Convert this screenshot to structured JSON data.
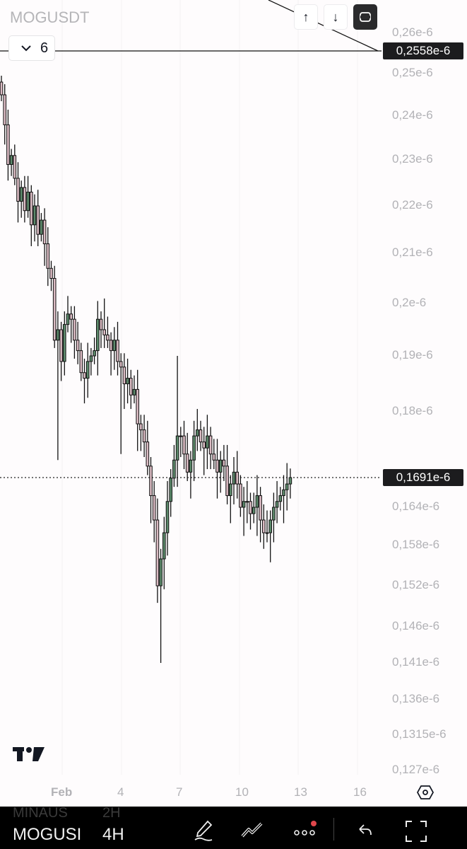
{
  "header": {
    "symbol": "MOGUSDT",
    "collapse_count": "6",
    "collapse_icon": "chevron-down-icon",
    "buttons": [
      "arrow-up-icon",
      "arrow-down-icon",
      "fullscreen-icon"
    ]
  },
  "price_axis": {
    "unit": "e-6",
    "ticks": [
      "0,26e-6",
      "0,25e-6",
      "0,24e-6",
      "0,23e-6",
      "0,22e-6",
      "0,21e-6",
      "0,2e-6",
      "0,19e-6",
      "0,18e-6",
      "0,164e-6",
      "0,158e-6",
      "0,152e-6",
      "0,146e-6",
      "0,141e-6",
      "0,136e-6",
      "0,1315e-6",
      "0,127e-6"
    ],
    "line_tag": "0,2558e-6",
    "last_price_tag": "0,1691e-6"
  },
  "time_axis": {
    "ticks": [
      "Feb",
      "4",
      "7",
      "10",
      "13",
      "16"
    ],
    "settings_icon": "hexagon-settings-icon"
  },
  "logo": "TV",
  "colors": {
    "up": "#5d8b6c",
    "down": "#dcbcc4",
    "outline": "#111111",
    "tag_bg": "#1c1c1e"
  },
  "chart_data": {
    "type": "candlestick",
    "timeframe": "4H",
    "price_scale": "1e-9",
    "first_open": 248,
    "closes": [
      245,
      238,
      229,
      231,
      226,
      221,
      224,
      219,
      223,
      216,
      220,
      214,
      217,
      212,
      207,
      205,
      193,
      195,
      189,
      196,
      198,
      197,
      193,
      191,
      187,
      186,
      189,
      190,
      191,
      197,
      195,
      194,
      193,
      191,
      193,
      189,
      188,
      185,
      186,
      183,
      184,
      178,
      177,
      175,
      171,
      166,
      162,
      152,
      156,
      160,
      165,
      169,
      172,
      176,
      176,
      173,
      170,
      172,
      176,
      177,
      175,
      174,
      176,
      173,
      172,
      170,
      172,
      171,
      166,
      168,
      170,
      168,
      164,
      165,
      165,
      163,
      164,
      166,
      162,
      160,
      160,
      162,
      164,
      165,
      166,
      167,
      168,
      169.1
    ],
    "wick_overrides": [
      {
        "i": 17,
        "low": 172
      },
      {
        "i": 48,
        "low": 141
      },
      {
        "i": 53,
        "high": 190
      },
      {
        "i": 36,
        "low": 173
      },
      {
        "i": 31,
        "high": 201
      }
    ],
    "horizontal_line": 255.8,
    "last_price": 169.1
  },
  "bottom_bar": {
    "ghost_symbol": "MINAUS",
    "ghost_interval": "2H",
    "symbol": "MOGUSI",
    "interval": "4H",
    "icons": [
      "pencil-draw-icon",
      "drawing-tools-icon",
      "more-icon",
      "undo-icon",
      "fullscreen-icon"
    ]
  }
}
